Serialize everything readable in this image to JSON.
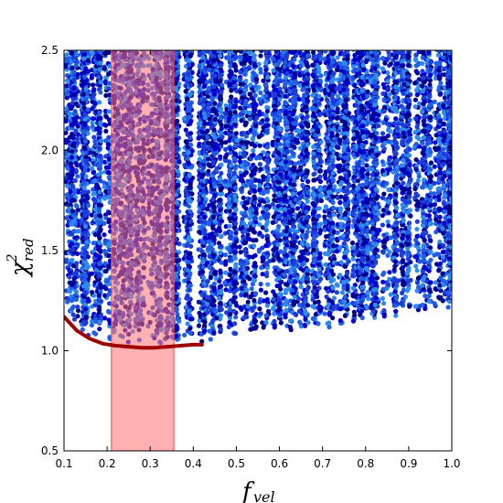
{
  "chart_data": {
    "type": "scatter",
    "xlabel": "f_vel",
    "ylabel": "χ²_red",
    "xlim": [
      0.1,
      1.0
    ],
    "ylim": [
      0.5,
      2.5
    ],
    "xticks": [
      "0.1",
      "0.2",
      "0.3",
      "0.4",
      "0.5",
      "0.6",
      "0.7",
      "0.8",
      "0.9",
      "1.0"
    ],
    "yticks": [
      "0.5",
      "1.0",
      "1.5",
      "2.0",
      "2.5"
    ],
    "shaded_band": {
      "x_range": [
        0.21,
        0.355
      ],
      "color": "#ff6f6f"
    },
    "min_envelope": {
      "color": "#a00000",
      "points": [
        [
          0.1,
          1.17
        ],
        [
          0.13,
          1.1
        ],
        [
          0.16,
          1.06
        ],
        [
          0.19,
          1.035
        ],
        [
          0.22,
          1.025
        ],
        [
          0.25,
          1.02
        ],
        [
          0.28,
          1.015
        ],
        [
          0.31,
          1.015
        ],
        [
          0.34,
          1.02
        ],
        [
          0.37,
          1.025
        ],
        [
          0.4,
          1.03
        ],
        [
          0.42,
          1.03
        ]
      ]
    },
    "lower_boundary": [
      [
        0.1,
        1.17
      ],
      [
        0.15,
        1.08
      ],
      [
        0.2,
        1.04
      ],
      [
        0.3,
        1.02
      ],
      [
        0.4,
        1.03
      ],
      [
        0.5,
        1.06
      ],
      [
        0.6,
        1.08
      ],
      [
        0.7,
        1.1
      ],
      [
        0.8,
        1.13
      ],
      [
        0.9,
        1.16
      ],
      [
        1.0,
        1.2
      ]
    ],
    "column_positions": [
      0.11,
      0.125,
      0.14,
      0.155,
      0.17,
      0.185,
      0.2,
      0.215,
      0.23,
      0.245,
      0.26,
      0.275,
      0.29,
      0.305,
      0.32,
      0.335,
      0.35,
      0.365,
      0.38,
      0.395,
      0.41,
      0.425,
      0.44,
      0.455,
      0.47,
      0.485,
      0.5,
      0.515,
      0.53,
      0.545,
      0.56,
      0.575,
      0.59,
      0.605,
      0.62,
      0.635,
      0.65,
      0.665,
      0.68,
      0.695,
      0.71,
      0.725,
      0.74,
      0.755,
      0.77,
      0.785,
      0.8,
      0.815,
      0.83,
      0.845,
      0.86,
      0.875,
      0.89,
      0.905,
      0.92,
      0.935,
      0.95,
      0.965,
      0.98,
      0.99
    ],
    "point_colors": [
      "#00008b",
      "#0000cd",
      "#1e3cdc",
      "#1f5fe8",
      "#2f8af0"
    ]
  }
}
